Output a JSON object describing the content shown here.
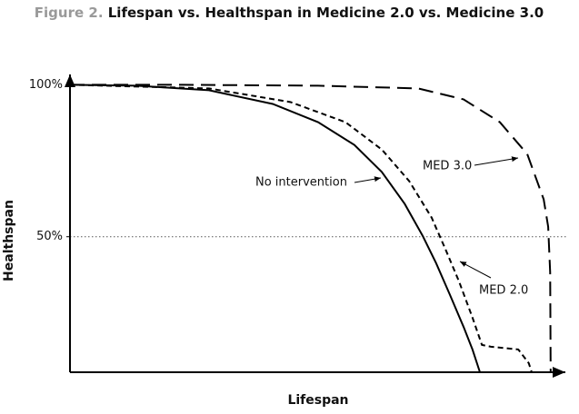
{
  "chart_data": {
    "type": "line",
    "figure_label": "Figure 2.",
    "title": "Lifespan vs. Healthspan in Medicine 2.0 vs. Medicine 3.0",
    "x_label": "Lifespan",
    "y_label": "Healthspan",
    "xlim": [
      0,
      100
    ],
    "ylim": [
      5.4,
      104
    ],
    "yticks": [
      {
        "value": 100,
        "label": "100%"
      },
      {
        "value": 50,
        "label": "50%"
      }
    ],
    "reference_line": 50,
    "series": [
      {
        "name": "No intervention",
        "color": "#000000",
        "dash": "solid",
        "x": [
          0,
          13.3,
          27.9,
          40.7,
          49.8,
          57.1,
          62.6,
          67.2,
          70.8,
          73.5,
          76.3,
          79.0,
          80.8,
          82.3
        ],
        "values": [
          100,
          99.7,
          98.2,
          93.7,
          87.7,
          80.2,
          71.3,
          60.8,
          50.3,
          41.3,
          30.8,
          20.4,
          12.9,
          5.4
        ]
      },
      {
        "name": "MED 2.0",
        "color": "#000000",
        "dash": "short",
        "x": [
          0,
          27.9,
          44.3,
          55.3,
          62.6,
          68.1,
          72.6,
          75.4,
          78.1,
          80.8,
          82.7,
          84.5,
          90.0,
          92.1,
          92.7
        ],
        "values": [
          100,
          98.8,
          94.3,
          87.7,
          78.7,
          68.3,
          56.3,
          45.8,
          35.3,
          23.4,
          14.4,
          13.8,
          12.9,
          8.4,
          5.4
        ]
      },
      {
        "name": "MED 3.0",
        "color": "#000000",
        "dash": "long",
        "x": [
          0,
          22.4,
          49.8,
          69.9,
          79.0,
          86.3,
          91.8,
          95.1,
          96.0,
          96.4,
          96.5
        ],
        "values": [
          100,
          100,
          99.7,
          98.8,
          95.2,
          87.7,
          77.2,
          62.3,
          53.3,
          38.3,
          5.4
        ]
      }
    ]
  }
}
